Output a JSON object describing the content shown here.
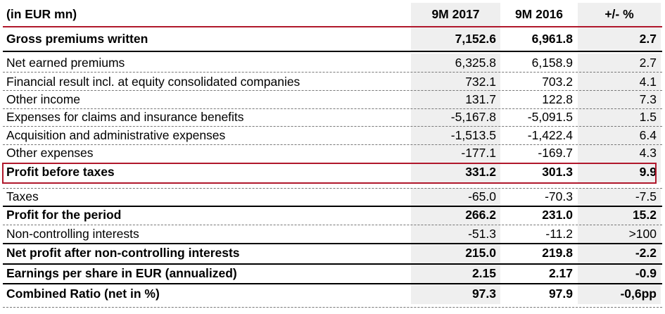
{
  "header": {
    "label": "(in EUR mn)",
    "col1": "9M 2017",
    "col2": "9M 2016",
    "col3": "+/- %"
  },
  "rows": [
    {
      "label": "Gross premiums written",
      "v2017": "7,152.6",
      "v2016": "6,961.8",
      "change": "2.7",
      "bold": true
    },
    {
      "label": "Net earned premiums",
      "v2017": "6,325.8",
      "v2016": "6,158.9",
      "change": "2.7",
      "bold": false
    },
    {
      "label": "Financial result incl. at equity consolidated companies",
      "v2017": "732.1",
      "v2016": "703.2",
      "change": "4.1",
      "bold": false
    },
    {
      "label": "Other income",
      "v2017": "131.7",
      "v2016": "122.8",
      "change": "7.3",
      "bold": false
    },
    {
      "label": "Expenses for claims and insurance benefits",
      "v2017": "-5,167.8",
      "v2016": "-5,091.5",
      "change": "1.5",
      "bold": false
    },
    {
      "label": "Acquisition and administrative expenses",
      "v2017": "-1,513.5",
      "v2016": "-1,422.4",
      "change": "6.4",
      "bold": false
    },
    {
      "label": "Other expenses",
      "v2017": "-177.1",
      "v2016": "-169.7",
      "change": "4.3",
      "bold": false
    },
    {
      "label": "Profit before taxes",
      "v2017": "331.2",
      "v2016": "301.3",
      "change": "9.9",
      "bold": true
    },
    {
      "label": "Taxes",
      "v2017": "-65.0",
      "v2016": "-70.3",
      "change": "-7.5",
      "bold": false
    },
    {
      "label": "Profit for the period",
      "v2017": "266.2",
      "v2016": "231.0",
      "change": "15.2",
      "bold": true
    },
    {
      "label": "Non-controlling interests",
      "v2017": "-51.3",
      "v2016": "-11.2",
      "change": ">100",
      "bold": false
    },
    {
      "label": "Net profit after non-controlling interests",
      "v2017": "215.0",
      "v2016": "219.8",
      "change": "-2.2",
      "bold": true
    },
    {
      "label": "Earnings per share in EUR (annualized)",
      "v2017": "2.15",
      "v2016": "2.17",
      "change": "-0.9",
      "bold": true
    },
    {
      "label": "Combined Ratio (net in %)",
      "v2017": "97.3",
      "v2016": "97.9",
      "change": "-0,6pp",
      "bold": true
    }
  ],
  "colors": {
    "accent_red": "#b0182c",
    "shade": "#efefef"
  }
}
